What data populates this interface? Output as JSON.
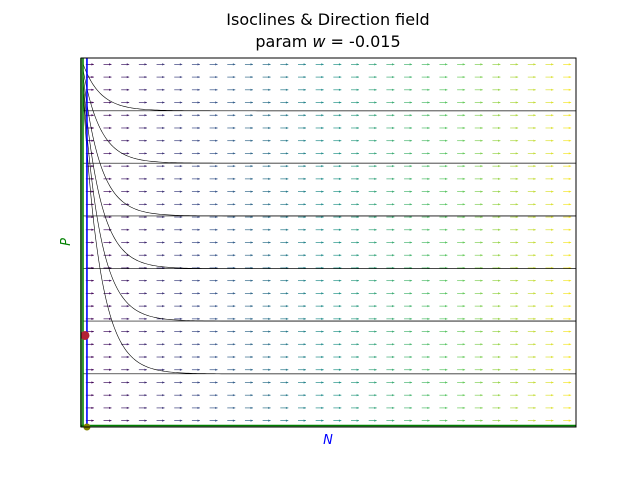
{
  "chart_data": {
    "type": "line",
    "title_line1": "Isoclines & Direction field",
    "title_line2_prefix": "param ",
    "title_line2_symbol": "w",
    "title_line2_suffix": " = -0.015",
    "xlabel": "N",
    "ylabel": "P",
    "xlim": [
      0,
      1
    ],
    "ylim": [
      0,
      1
    ],
    "grid": false,
    "legend": "none",
    "colors": {
      "xlabel": "#0000ff",
      "ylabel": "#008000",
      "n_nullcline": "#008000",
      "p_nullcline": "#0000ff",
      "trajectory": "#000000",
      "equilibrium_interior": "#b22234",
      "equilibrium_origin": "#808000"
    },
    "arrow_colormap": [
      "#440154",
      "#3b528b",
      "#21918c",
      "#5ec962",
      "#fde725"
    ],
    "n_nullclines": [
      {
        "type": "vertical",
        "x": 0.0
      },
      {
        "type": "vertical",
        "x": 0.004
      },
      {
        "type": "horizontal",
        "y": 0.004
      }
    ],
    "p_nullcline": {
      "type": "vertical",
      "x": 0.012
    },
    "trajectories": [
      {
        "start_y": 1.0,
        "end_y": 0.857
      },
      {
        "start_y": 1.0,
        "end_y": 0.715
      },
      {
        "start_y": 1.0,
        "end_y": 0.572
      },
      {
        "start_y": 1.0,
        "end_y": 0.429
      },
      {
        "start_y": 1.0,
        "end_y": 0.287
      },
      {
        "start_y": 1.0,
        "end_y": 0.144
      },
      {
        "start_y": 0.857,
        "end_y": 0.857
      },
      {
        "start_y": 0.715,
        "end_y": 0.715
      },
      {
        "start_y": 0.572,
        "end_y": 0.572
      },
      {
        "start_y": 0.429,
        "end_y": 0.429
      },
      {
        "start_y": 0.287,
        "end_y": 0.287
      },
      {
        "start_y": 0.144,
        "end_y": 0.144
      }
    ],
    "equilibria": [
      {
        "x": 0.008,
        "y": 0.248,
        "kind": "interior"
      },
      {
        "x": 0.012,
        "y": 0.0,
        "kind": "origin"
      }
    ],
    "direction_field": {
      "cols": 28,
      "rows": 29
    }
  }
}
